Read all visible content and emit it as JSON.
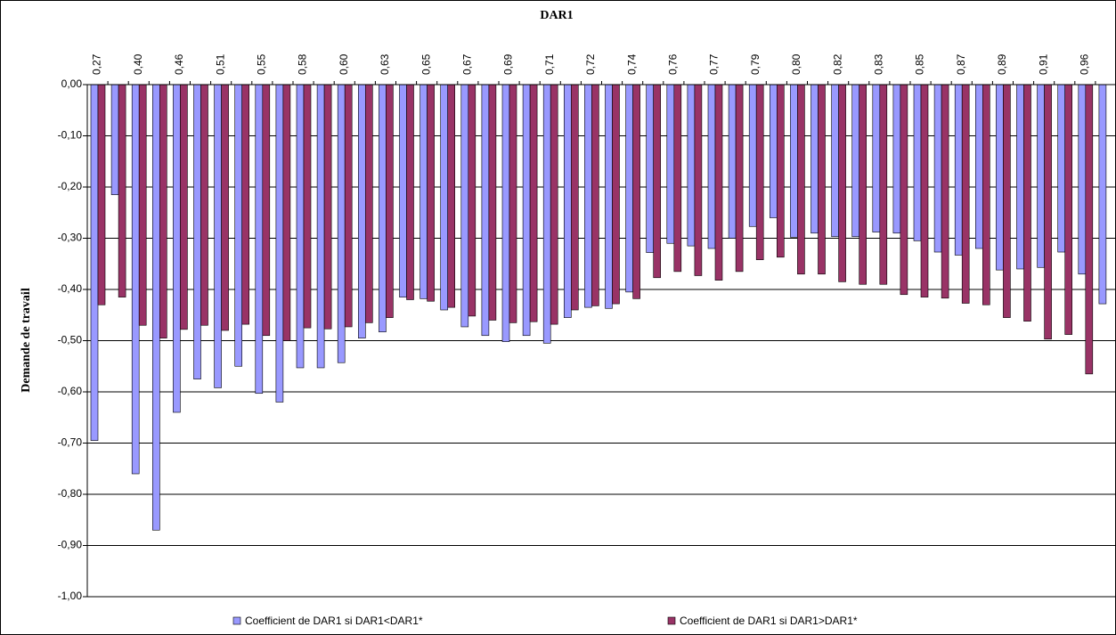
{
  "chart_data": {
    "type": "bar",
    "title": "DAR1",
    "y_label": "Demande de travail",
    "categories": [
      "0,27",
      null,
      "0,40",
      null,
      "0,46",
      null,
      "0,51",
      null,
      "0,55",
      null,
      "0,58",
      null,
      "0,60",
      null,
      "0,63",
      null,
      "0,65",
      null,
      "0,67",
      null,
      "0,69",
      null,
      "0,71",
      null,
      "0,72",
      null,
      "0,74",
      null,
      "0,76",
      null,
      "0,77",
      null,
      "0,79",
      null,
      "0,80",
      null,
      "0,82",
      null,
      "0,83",
      null,
      "0,85",
      null,
      "0,87",
      null,
      "0,89",
      null,
      "0,91",
      null,
      "0,96",
      null
    ],
    "series": [
      {
        "name": "Coefficient de DAR1 si DAR1<DAR1*",
        "color": "#9999ff",
        "values": [
          -0.695,
          -0.215,
          -0.76,
          -0.87,
          -0.64,
          -0.575,
          -0.592,
          -0.55,
          -0.603,
          -0.62,
          -0.553,
          -0.553,
          -0.543,
          -0.495,
          -0.483,
          -0.415,
          -0.418,
          -0.44,
          -0.473,
          -0.49,
          -0.502,
          -0.49,
          -0.505,
          -0.455,
          -0.435,
          -0.437,
          -0.405,
          -0.328,
          -0.31,
          -0.315,
          -0.32,
          -0.3,
          -0.277,
          -0.26,
          -0.298,
          -0.29,
          -0.297,
          -0.297,
          -0.288,
          -0.29,
          -0.305,
          -0.327,
          -0.333,
          -0.32,
          -0.362,
          -0.36,
          -0.357,
          -0.327,
          -0.37,
          -0.428
        ]
      },
      {
        "name": "Coefficient de DAR1 si DAR1>DAR1*",
        "color": "#993366",
        "values": [
          -0.43,
          -0.415,
          -0.47,
          -0.495,
          -0.478,
          -0.47,
          -0.48,
          -0.468,
          -0.49,
          -0.5,
          -0.475,
          -0.477,
          -0.473,
          -0.465,
          -0.455,
          -0.42,
          -0.423,
          -0.435,
          -0.452,
          -0.46,
          -0.465,
          -0.463,
          -0.468,
          -0.44,
          -0.432,
          -0.428,
          -0.418,
          -0.377,
          -0.365,
          -0.373,
          -0.382,
          -0.365,
          -0.342,
          -0.337,
          -0.37,
          -0.37,
          -0.385,
          -0.39,
          -0.39,
          -0.41,
          -0.415,
          -0.417,
          -0.427,
          -0.43,
          -0.455,
          -0.462,
          -0.497,
          -0.488,
          -0.565,
          null
        ]
      }
    ],
    "ylim": [
      -1,
      0
    ],
    "yticks": [
      {
        "value": 0,
        "label": "0,00"
      },
      {
        "value": -0.1,
        "label": "-0,10"
      },
      {
        "value": -0.2,
        "label": "-0,20"
      },
      {
        "value": -0.3,
        "label": "-0,30"
      },
      {
        "value": -0.4,
        "label": "-0,40"
      },
      {
        "value": -0.5,
        "label": "-0,50"
      },
      {
        "value": -0.6,
        "label": "-0,60"
      },
      {
        "value": -0.7,
        "label": "-0,70"
      },
      {
        "value": -0.8,
        "label": "-0,80"
      },
      {
        "value": -0.9,
        "label": "-0,90"
      },
      {
        "value": -1,
        "label": "-1,00"
      }
    ],
    "grid": true,
    "legend_position": "bottom"
  }
}
